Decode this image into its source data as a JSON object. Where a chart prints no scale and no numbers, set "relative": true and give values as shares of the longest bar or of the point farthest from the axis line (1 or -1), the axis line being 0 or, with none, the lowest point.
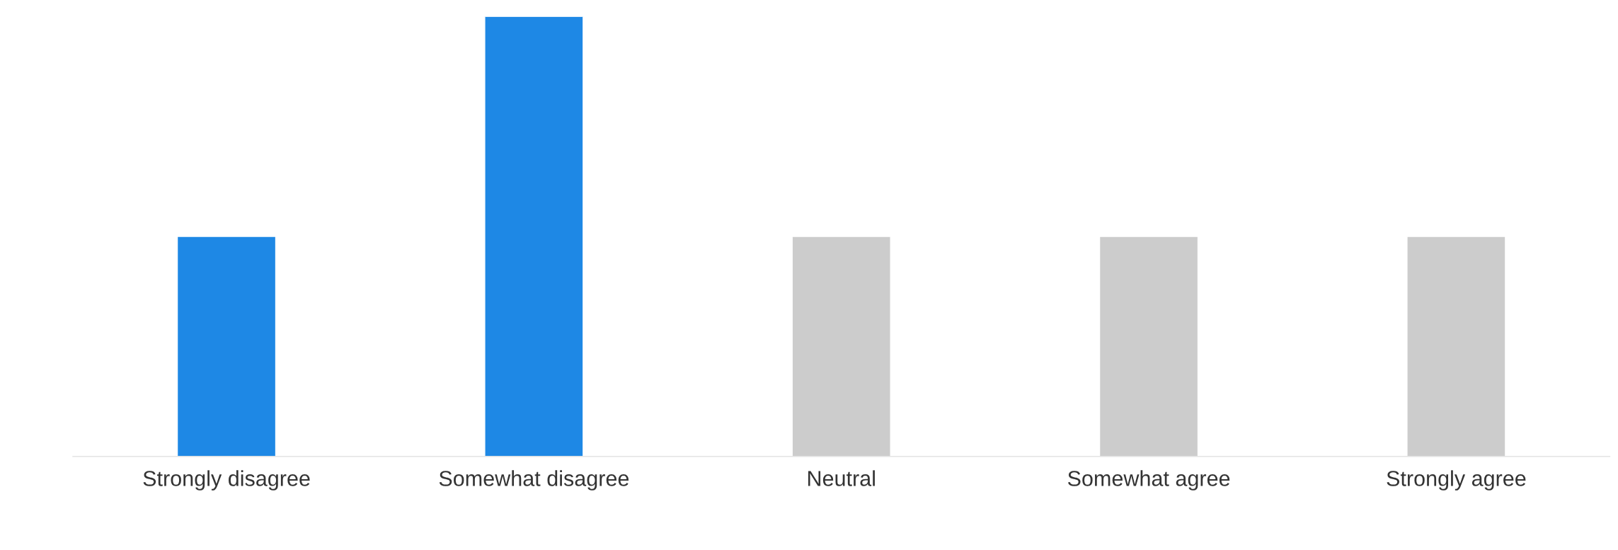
{
  "chart_data": {
    "type": "bar",
    "relative": true,
    "categories": [
      "Strongly disagree",
      "Somewhat disagree",
      "Neutral",
      "Somewhat agree",
      "Strongly agree"
    ],
    "values": [
      0.5,
      1,
      0.5,
      0.5,
      0.5
    ],
    "colors": [
      "#1e88e5",
      "#1e88e5",
      "#cccccc",
      "#cccccc",
      "#cccccc"
    ]
  }
}
